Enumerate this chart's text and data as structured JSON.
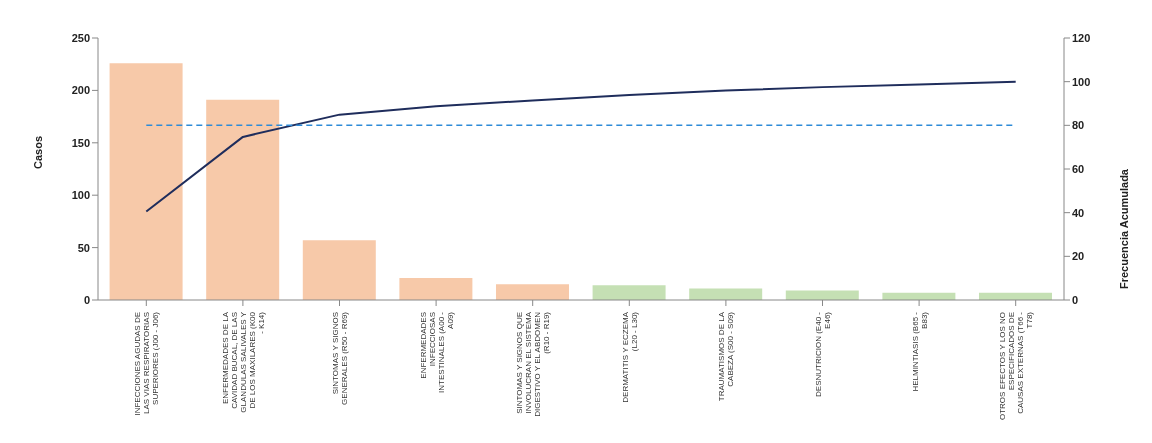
{
  "chart_data": {
    "type": "bar",
    "ylabel": "Casos",
    "y2label": "Frecuencia Acumulada",
    "categories": [
      "INFECCIONES AGUDAS DE LAS VIAS RESPIRATORIAS SUPERIORES (J00 - J06)",
      "ENFERMEDADES DE LA CAVIDAD BUCAL, DE LAS GLANDULAS SALIVALES Y DE LOS MAXILARES (K00 - K14)",
      "SINTOMAS Y SIGNOS GENERALES (R50 - R69)",
      "ENFERMEDADES INFECCIOSAS INTESTINALES (A00 - A09)",
      "SINTOMAS Y SIGNOS QUE INVOLUCRAN EL SISTEMA DIGESTIVO Y EL ABDOMEN (R10 - R19)",
      "DERMATITIS Y ECZEMA (L20 - L30)",
      "TRAUMATISMOS DE LA CABEZA (S00 - S09)",
      "DESNUTRICION (E40 - E46)",
      "HELMINTIASIS (B65 - B83)",
      "OTROS EFECTOS Y LOS NO ESPECIFICADOS DE CAUSAS EXTERNAS (T66 - T78)"
    ],
    "series": [
      {
        "values": [
          226,
          191,
          57,
          21,
          15,
          14,
          11,
          9,
          7,
          7
        ],
        "colors": [
          "#f7c9a9",
          "#f7c9a9",
          "#f7c9a9",
          "#f7c9a9",
          "#f7c9a9",
          "#c5e0b4",
          "#c5e0b4",
          "#c5e0b4",
          "#c5e0b4",
          "#c5e0b4"
        ]
      },
      {
        "type": "line",
        "axis": "y2",
        "color": "#1f2d5c",
        "values": [
          40.5,
          74.7,
          84.9,
          88.7,
          91.4,
          93.9,
          95.9,
          97.5,
          98.7,
          100
        ]
      }
    ],
    "ylim": [
      0,
      250
    ],
    "yticks": [
      0,
      50,
      100,
      150,
      200,
      250
    ],
    "y2lim": [
      0,
      120
    ],
    "y2ticks": [
      0,
      20,
      40,
      60,
      80,
      100,
      120
    ],
    "ref_lines": [
      {
        "axis": "y2",
        "value": 80,
        "color": "#2e8bd8",
        "line_style": "dashed"
      }
    ],
    "grid": false,
    "legend": false,
    "marker": "none"
  }
}
